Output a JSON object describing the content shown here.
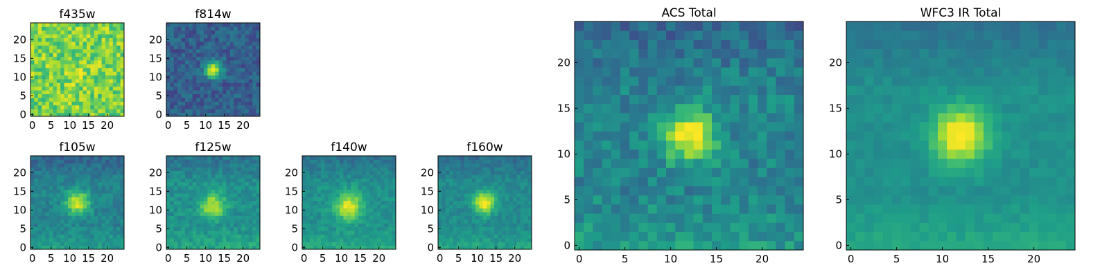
{
  "chart_data": {
    "type": "heatmap",
    "colormap": "viridis",
    "grid": false,
    "panels": [
      {
        "title": "f435w",
        "xlim": [
          0,
          24
        ],
        "ylim": [
          0,
          24
        ],
        "xticks": [
          "0",
          "5",
          "10",
          "15",
          "20"
        ],
        "yticks": [
          "0",
          "5",
          "10",
          "15",
          "20"
        ],
        "source": {
          "x": 12,
          "y": 11,
          "amp": 0.05,
          "sigma": 2.0
        },
        "noise": 0.32,
        "base": 0.8,
        "seed": 3
      },
      {
        "title": "f814w",
        "xlim": [
          0,
          24
        ],
        "ylim": [
          0,
          24
        ],
        "xticks": [
          "0",
          "5",
          "10",
          "15",
          "20"
        ],
        "yticks": [
          "0",
          "5",
          "10",
          "15",
          "20"
        ],
        "source": {
          "x": 12,
          "y": 12,
          "amp": 0.65,
          "sigma": 1.6
        },
        "noise": 0.22,
        "base": 0.3,
        "seed": 11
      },
      {
        "title": "f105w",
        "xlim": [
          0,
          24
        ],
        "ylim": [
          0,
          24
        ],
        "xticks": [
          "0",
          "5",
          "10",
          "15",
          "20"
        ],
        "yticks": [
          "0",
          "5",
          "10",
          "15",
          "20"
        ],
        "source": {
          "x": 12,
          "y": 12,
          "amp": 0.5,
          "sigma": 2.2
        },
        "noise": 0.16,
        "base": 0.45,
        "seed": 21
      },
      {
        "title": "f125w",
        "xlim": [
          0,
          24
        ],
        "ylim": [
          0,
          24
        ],
        "xticks": [
          "0",
          "5",
          "10",
          "15",
          "20"
        ],
        "yticks": [
          "0",
          "5",
          "10",
          "15",
          "20"
        ],
        "source": {
          "x": 12,
          "y": 11,
          "amp": 0.42,
          "sigma": 2.3
        },
        "noise": 0.16,
        "base": 0.5,
        "seed": 31
      },
      {
        "title": "f140w",
        "xlim": [
          0,
          24
        ],
        "ylim": [
          0,
          24
        ],
        "xticks": [
          "0",
          "5",
          "10",
          "15",
          "20"
        ],
        "yticks": [
          "0",
          "5",
          "10",
          "15",
          "20"
        ],
        "source": {
          "x": 12,
          "y": 11,
          "amp": 0.45,
          "sigma": 2.6
        },
        "noise": 0.14,
        "base": 0.5,
        "seed": 41
      },
      {
        "title": "f160w",
        "xlim": [
          0,
          24
        ],
        "ylim": [
          0,
          24
        ],
        "xticks": [
          "0",
          "5",
          "10",
          "15",
          "20"
        ],
        "yticks": [
          "0",
          "5",
          "10",
          "15",
          "20"
        ],
        "source": {
          "x": 12,
          "y": 12,
          "amp": 0.55,
          "sigma": 2.0
        },
        "noise": 0.14,
        "base": 0.48,
        "seed": 51
      },
      {
        "title": "ACS Total",
        "xlim": [
          0,
          24
        ],
        "ylim": [
          0,
          24
        ],
        "xticks": [
          "0",
          "5",
          "10",
          "15",
          "20"
        ],
        "yticks": [
          "0",
          "5",
          "10",
          "15",
          "20"
        ],
        "source": {
          "x": 12,
          "y": 12,
          "amp": 0.55,
          "sigma": 2.0
        },
        "noise": 0.22,
        "base": 0.45,
        "seed": 61
      },
      {
        "title": "WFC3 IR Total",
        "xlim": [
          0,
          24
        ],
        "ylim": [
          0,
          24
        ],
        "xticks": [
          "0",
          "5",
          "10",
          "15",
          "20"
        ],
        "yticks": [
          "0",
          "5",
          "10",
          "15",
          "20"
        ],
        "source": {
          "x": 12,
          "y": 12,
          "amp": 0.55,
          "sigma": 2.1
        },
        "noise": 0.08,
        "base": 0.5,
        "seed": 71
      }
    ]
  }
}
